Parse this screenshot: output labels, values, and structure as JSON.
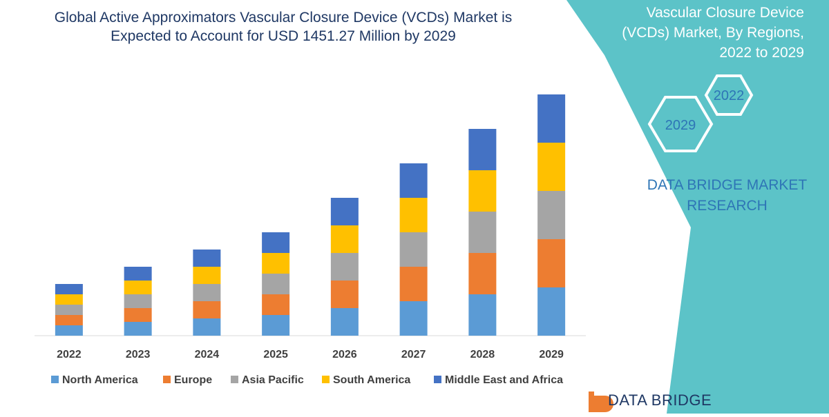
{
  "title_line1": "Global Active Approximators Vascular Closure Device (VCDs) Market is",
  "title_line2": "Expected to Account for USD 1451.27 Million by 2029",
  "side_panel": {
    "title_line0": "Vascular Closure Device",
    "title_line1": "(VCDs) Market, By Regions,",
    "title_line2": "2022 to 2029",
    "hex_top": "2022",
    "hex_bottom": "2029",
    "brand_line1": "DATA BRIDGE MARKET",
    "brand_line2": "RESEARCH",
    "accent": "#5cc3c8"
  },
  "logo_text": "DATA BRIDGE",
  "chart_data": {
    "type": "bar",
    "stacked": true,
    "categories": [
      "2022",
      "2023",
      "2024",
      "2025",
      "2026",
      "2027",
      "2028",
      "2029"
    ],
    "series": [
      {
        "name": "North America",
        "color": "#5b9bd5",
        "values": [
          15,
          20,
          25,
          30,
          40,
          50,
          60,
          70
        ]
      },
      {
        "name": "Europe",
        "color": "#ed7d31",
        "values": [
          15,
          20,
          25,
          30,
          40,
          50,
          60,
          70
        ]
      },
      {
        "name": "Asia Pacific",
        "color": "#a5a5a5",
        "values": [
          15,
          20,
          25,
          30,
          40,
          50,
          60,
          70
        ]
      },
      {
        "name": "South America",
        "color": "#ffc000",
        "values": [
          15,
          20,
          25,
          30,
          40,
          50,
          60,
          70
        ]
      },
      {
        "name": "Middle East and Africa",
        "color": "#4472c4",
        "values": [
          15,
          20,
          25,
          30,
          40,
          50,
          60,
          70
        ]
      }
    ],
    "ylim": [
      0,
      360
    ],
    "grid": false,
    "legend_position": "bottom"
  }
}
